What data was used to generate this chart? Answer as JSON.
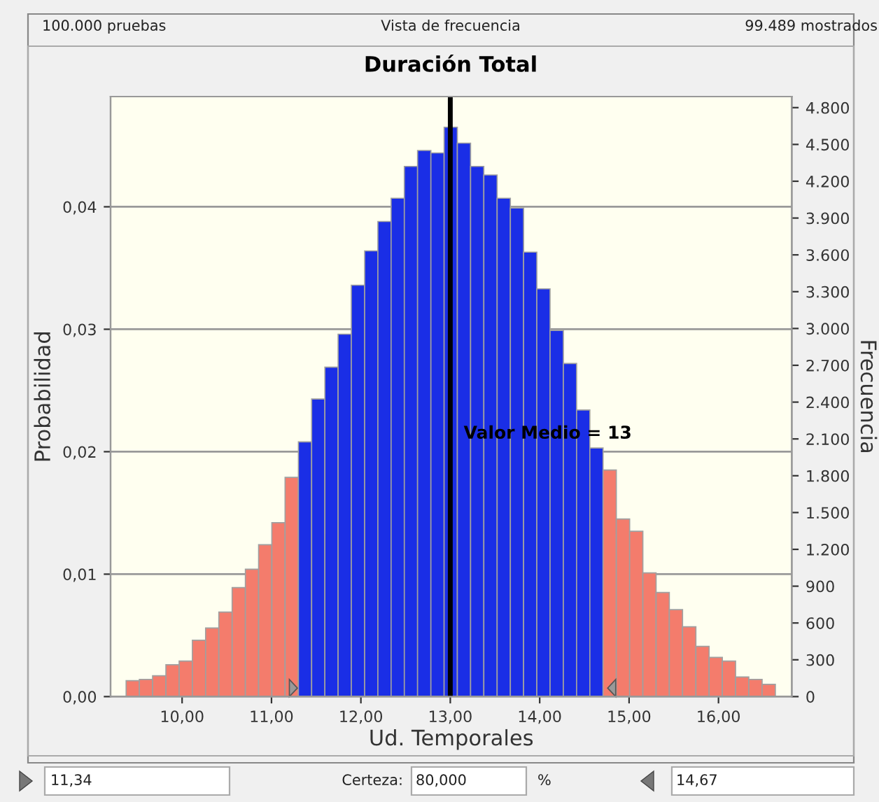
{
  "chart_data": {
    "type": "histogram",
    "title": "Duración Total",
    "xlabel": "Ud. Temporales",
    "ylabel": "Probabilidad",
    "y2label": "Frecuencia",
    "bins": [
      9.374,
      9.522,
      9.67,
      9.819,
      9.967,
      10.115,
      10.263,
      10.411,
      10.56,
      10.708,
      10.856,
      11.004,
      11.152,
      11.301,
      11.449,
      11.597,
      11.745,
      11.893,
      12.042,
      12.19,
      12.338,
      12.486,
      12.634,
      12.783,
      12.931,
      13.079,
      13.227,
      13.375,
      13.524,
      13.672,
      13.82,
      13.968,
      14.116,
      14.265,
      14.413,
      14.561,
      14.709,
      14.857,
      15.006,
      15.154,
      15.302,
      15.45,
      15.598,
      15.747,
      15.895,
      16.043,
      16.191,
      16.339,
      16.488,
      16.636
    ],
    "values": [
      0.0013,
      0.0014,
      0.0017,
      0.0026,
      0.0029,
      0.0046,
      0.0056,
      0.0069,
      0.0089,
      0.0104,
      0.0124,
      0.0142,
      0.0179,
      0.0208,
      0.0243,
      0.0269,
      0.0296,
      0.0336,
      0.0364,
      0.0388,
      0.0407,
      0.0433,
      0.0446,
      0.0444,
      0.0465,
      0.0452,
      0.0433,
      0.0426,
      0.0407,
      0.0399,
      0.0363,
      0.0333,
      0.0299,
      0.0272,
      0.0234,
      0.0203,
      0.0185,
      0.0145,
      0.0135,
      0.0101,
      0.0085,
      0.0071,
      0.0057,
      0.0041,
      0.0032,
      0.0029,
      0.0016,
      0.0014,
      0.001
    ],
    "colors": [
      "#f47c6c",
      "#f47c6c",
      "#f47c6c",
      "#f47c6c",
      "#f47c6c",
      "#f47c6c",
      "#f47c6c",
      "#f47c6c",
      "#f47c6c",
      "#f47c6c",
      "#f47c6c",
      "#f47c6c",
      "#f47c6c",
      "#1a2ee6",
      "#1a2ee6",
      "#1a2ee6",
      "#1a2ee6",
      "#1a2ee6",
      "#1a2ee6",
      "#1a2ee6",
      "#1a2ee6",
      "#1a2ee6",
      "#1a2ee6",
      "#1a2ee6",
      "#1a2ee6",
      "#1a2ee6",
      "#1a2ee6",
      "#1a2ee6",
      "#1a2ee6",
      "#1a2ee6",
      "#1a2ee6",
      "#1a2ee6",
      "#1a2ee6",
      "#1a2ee6",
      "#1a2ee6",
      "#1a2ee6",
      "#f47c6c",
      "#f47c6c",
      "#f47c6c",
      "#f47c6c",
      "#f47c6c",
      "#f47c6c",
      "#f47c6c",
      "#f47c6c",
      "#f47c6c",
      "#f47c6c",
      "#f47c6c",
      "#f47c6c",
      "#f47c6c"
    ],
    "xlim": [
      9.2,
      16.82
    ],
    "xticks": [
      {
        "value": 10,
        "label": "10,00"
      },
      {
        "value": 11,
        "label": "11,00"
      },
      {
        "value": 12,
        "label": "12,00"
      },
      {
        "value": 13,
        "label": "13,00"
      },
      {
        "value": 14,
        "label": "14,00"
      },
      {
        "value": 15,
        "label": "15,00"
      },
      {
        "value": 16,
        "label": "16,00"
      }
    ],
    "ylim": [
      0,
      0.049
    ],
    "yticks": [
      {
        "value": 0,
        "label": "0,00"
      },
      {
        "value": 0.01,
        "label": "0,01"
      },
      {
        "value": 0.02,
        "label": "0,02"
      },
      {
        "value": 0.03,
        "label": "0,03"
      },
      {
        "value": 0.04,
        "label": "0,04"
      }
    ],
    "y2lim": [
      0,
      4890
    ],
    "y2ticks": [
      0,
      300,
      600,
      900,
      {
        "value": 1200,
        "label": "1.200"
      },
      {
        "value": 1500,
        "label": "1.500"
      },
      {
        "value": 1800,
        "label": "1.800"
      },
      {
        "value": 2100,
        "label": "2.100"
      },
      {
        "value": 2400,
        "label": "2.400"
      },
      {
        "value": 2700,
        "label": "2.700"
      },
      {
        "value": 3000,
        "label": "3.000"
      },
      {
        "value": 3300,
        "label": "3.300"
      },
      {
        "value": 3600,
        "label": "3.600"
      },
      {
        "value": 3900,
        "label": "3.900"
      },
      {
        "value": 4200,
        "label": "4.200"
      },
      {
        "value": 4500,
        "label": "4.500"
      },
      {
        "value": 4800,
        "label": "4.800"
      }
    ],
    "grid": "y",
    "ref_lines": [
      {
        "axis": "x",
        "value": 13,
        "label": "Valor Medio = 13",
        "color": "#000000"
      }
    ],
    "annotations": [
      "100.000 pruebas",
      "Vista de frecuencia",
      "99.489 mostrados",
      "11,34",
      "Certeza:",
      "80,000",
      "%",
      "14,67"
    ]
  }
}
